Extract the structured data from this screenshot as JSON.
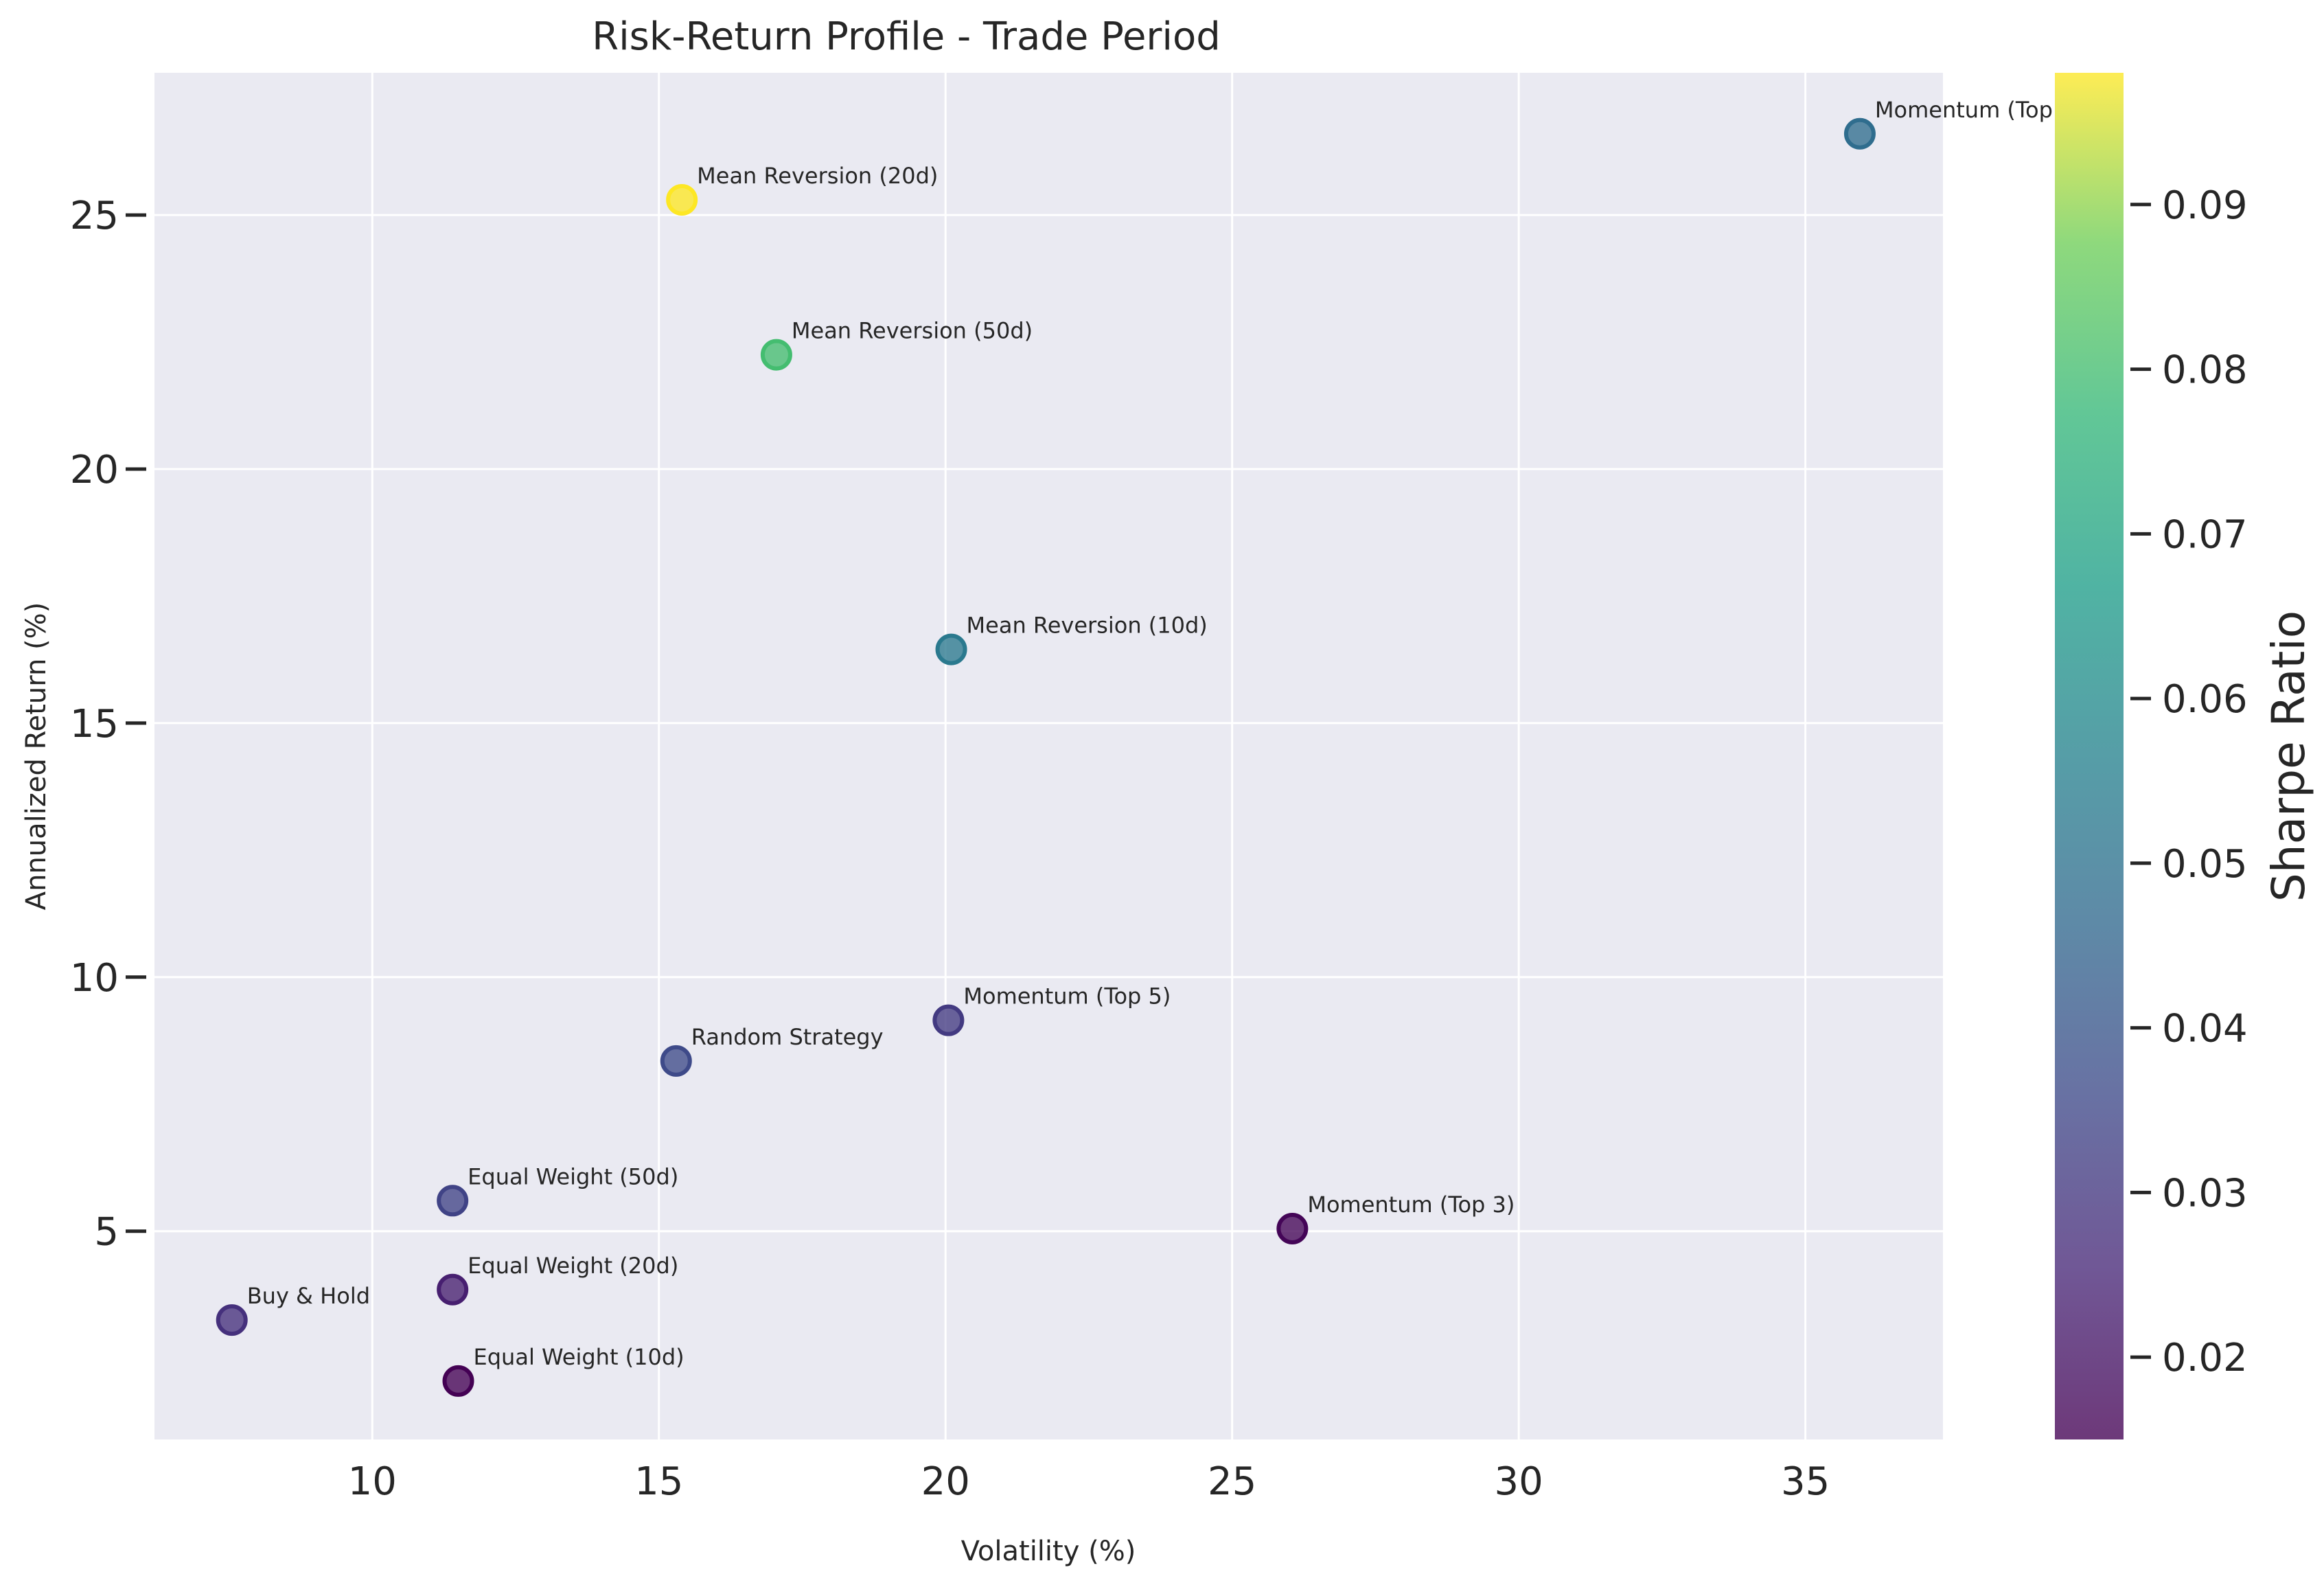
{
  "chart_data": {
    "type": "scatter",
    "title": "Risk-Return Profile - Trade Period",
    "xlabel": "Volatility (%)",
    "ylabel": "Annualized Return (%)",
    "xlim": [
      6.2,
      37.4
    ],
    "ylim": [
      0.9,
      27.8
    ],
    "xticks": [
      "10",
      "15",
      "20",
      "25",
      "30",
      "35"
    ],
    "xtick_values": [
      10,
      15,
      20,
      25,
      30,
      35
    ],
    "yticks": [
      "5",
      "10",
      "15",
      "20",
      "25"
    ],
    "ytick_values": [
      5,
      10,
      15,
      20,
      25
    ],
    "grid": true,
    "colorbar": {
      "label": "Sharpe Ratio",
      "colormap": "viridis",
      "range": [
        0.015,
        0.098
      ],
      "ticks": [
        "0.02",
        "0.03",
        "0.04",
        "0.05",
        "0.06",
        "0.07",
        "0.08",
        "0.09"
      ],
      "tick_values": [
        0.02,
        0.03,
        0.04,
        0.05,
        0.06,
        0.07,
        0.08,
        0.09
      ]
    },
    "points": [
      {
        "label": "Momentum (Top",
        "x": 35.95,
        "y": 26.6,
        "sharpe": 0.048
      },
      {
        "label": "Mean Reversion (20d)",
        "x": 15.4,
        "y": 25.3,
        "sharpe": 0.098
      },
      {
        "label": "Mean Reversion (50d)",
        "x": 17.05,
        "y": 22.25,
        "sharpe": 0.08
      },
      {
        "label": "Mean Reversion (10d)",
        "x": 20.1,
        "y": 16.45,
        "sharpe": 0.053
      },
      {
        "label": "Momentum (Top 5)",
        "x": 20.05,
        "y": 9.15,
        "sharpe": 0.031
      },
      {
        "label": "Random Strategy",
        "x": 15.3,
        "y": 8.35,
        "sharpe": 0.036
      },
      {
        "label": "Equal Weight (50d)",
        "x": 11.4,
        "y": 5.6,
        "sharpe": 0.034
      },
      {
        "label": "Momentum (Top 3)",
        "x": 26.05,
        "y": 5.05,
        "sharpe": 0.016
      },
      {
        "label": "Equal Weight (20d)",
        "x": 11.4,
        "y": 3.85,
        "sharpe": 0.023
      },
      {
        "label": "Buy & Hold",
        "x": 7.55,
        "y": 3.25,
        "sharpe": 0.028
      },
      {
        "label": "Equal Weight (10d)",
        "x": 11.5,
        "y": 2.05,
        "sharpe": 0.015
      }
    ]
  },
  "colors": {
    "plot_background": "#eaeaf2",
    "grid": "#ffffff",
    "text": "#262626"
  }
}
